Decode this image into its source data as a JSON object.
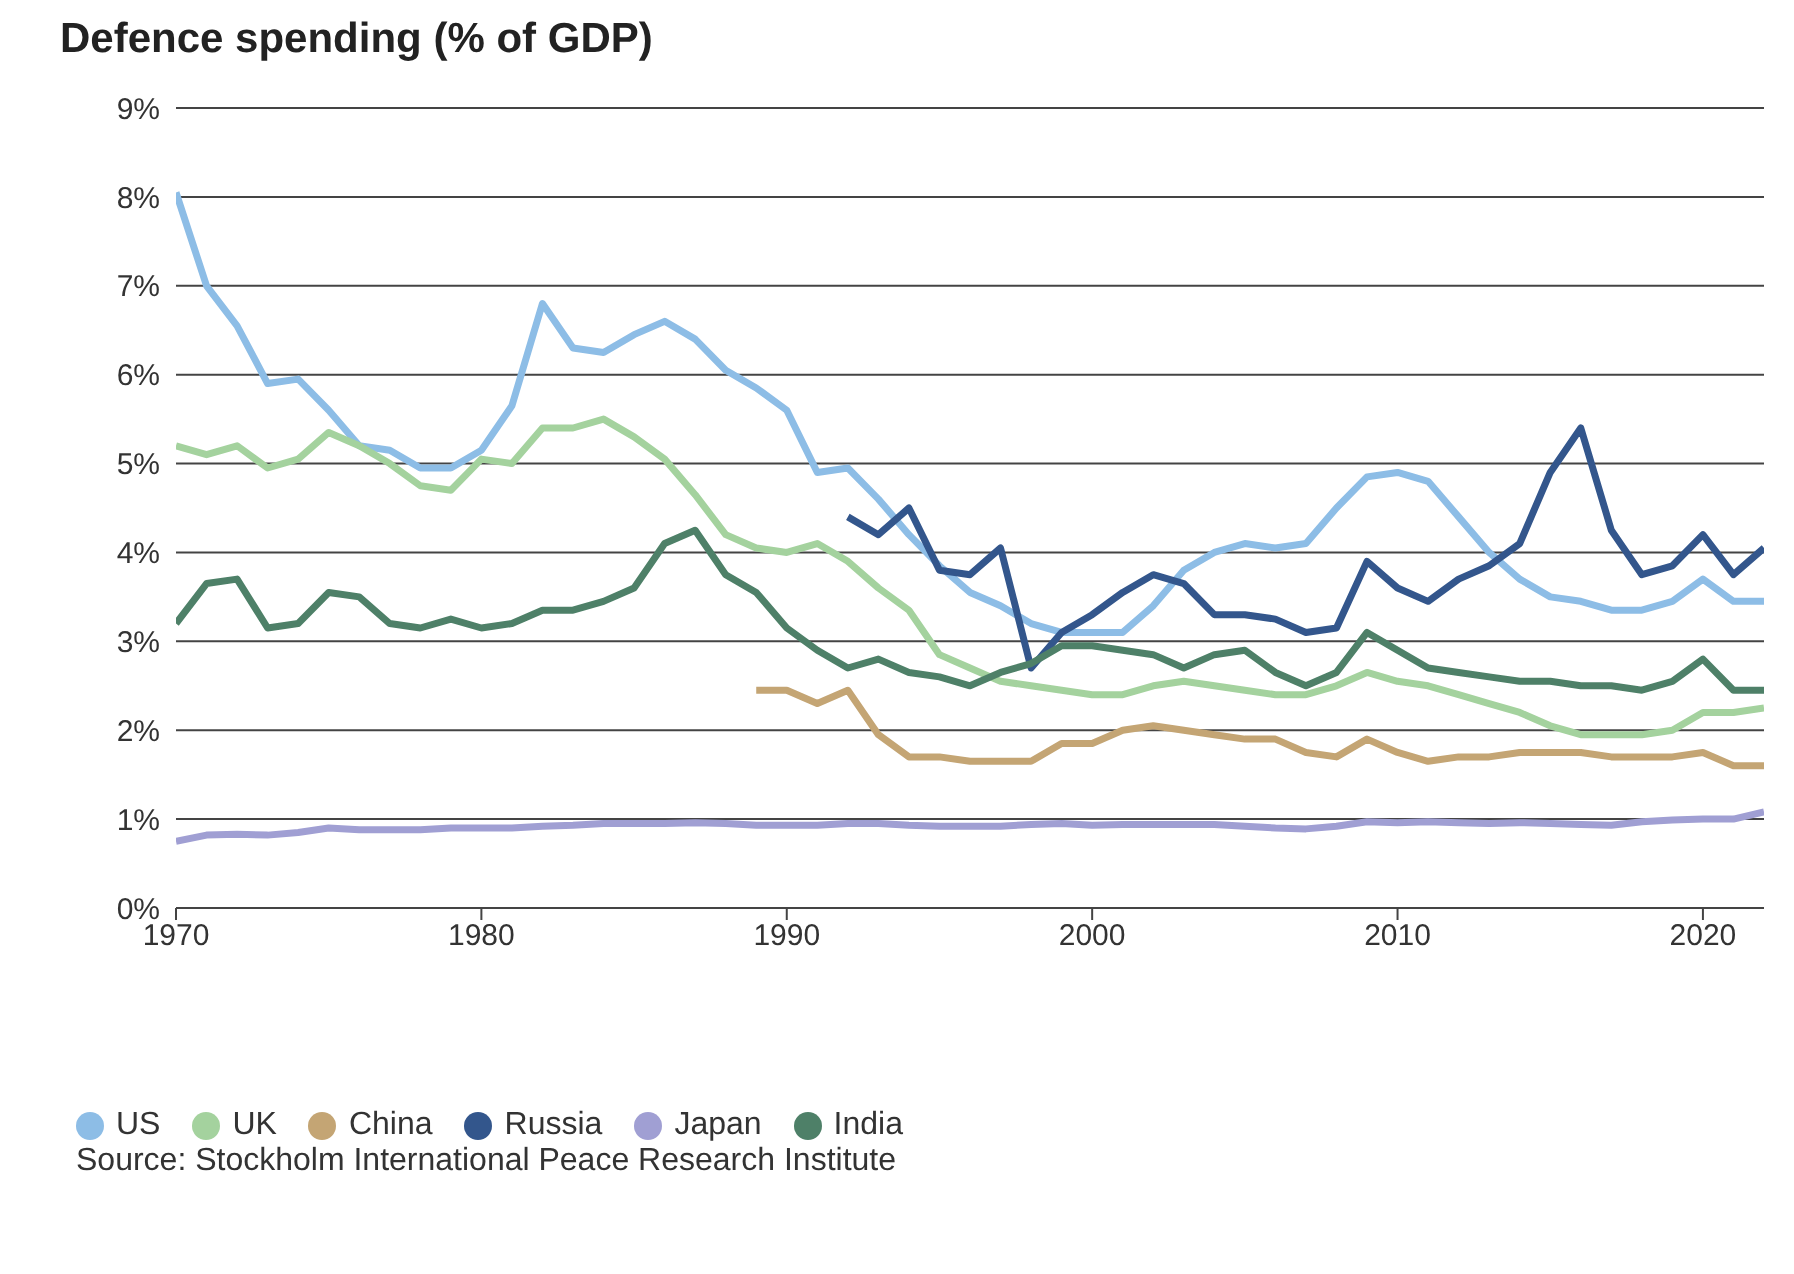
{
  "chart_data": {
    "type": "line",
    "title": "Defence spending (% of GDP)",
    "x": [
      1970,
      1971,
      1972,
      1973,
      1974,
      1975,
      1976,
      1977,
      1978,
      1979,
      1980,
      1981,
      1982,
      1983,
      1984,
      1985,
      1986,
      1987,
      1988,
      1989,
      1990,
      1991,
      1992,
      1993,
      1994,
      1995,
      1996,
      1997,
      1998,
      1999,
      2000,
      2001,
      2002,
      2003,
      2004,
      2005,
      2006,
      2007,
      2008,
      2009,
      2010,
      2011,
      2012,
      2013,
      2014,
      2015,
      2016,
      2017,
      2018,
      2019,
      2020,
      2021,
      2022
    ],
    "series": [
      {
        "name": "US",
        "color": "#8dbde6",
        "values": [
          8.05,
          7.0,
          6.55,
          5.9,
          5.95,
          5.6,
          5.2,
          5.15,
          4.95,
          4.95,
          5.15,
          5.65,
          6.8,
          6.3,
          6.25,
          6.45,
          6.6,
          6.4,
          6.05,
          5.85,
          5.6,
          4.9,
          4.95,
          4.6,
          4.2,
          3.85,
          3.55,
          3.4,
          3.2,
          3.1,
          3.1,
          3.1,
          3.4,
          3.8,
          4.0,
          4.1,
          4.05,
          4.1,
          4.5,
          4.85,
          4.9,
          4.8,
          4.4,
          4.0,
          3.7,
          3.5,
          3.45,
          3.35,
          3.35,
          3.45,
          3.7,
          3.45,
          3.45
        ]
      },
      {
        "name": "UK",
        "color": "#a4d29e",
        "values": [
          5.2,
          5.1,
          5.2,
          4.95,
          5.05,
          5.35,
          5.2,
          5.0,
          4.75,
          4.7,
          5.05,
          5.0,
          5.4,
          5.4,
          5.5,
          5.3,
          5.05,
          4.65,
          4.2,
          4.05,
          4.0,
          4.1,
          3.9,
          3.6,
          3.35,
          2.85,
          2.7,
          2.55,
          2.5,
          2.45,
          2.4,
          2.4,
          2.5,
          2.55,
          2.5,
          2.45,
          2.4,
          2.4,
          2.5,
          2.65,
          2.55,
          2.5,
          2.4,
          2.3,
          2.2,
          2.05,
          1.95,
          1.95,
          1.95,
          2.0,
          2.2,
          2.2,
          2.25
        ]
      },
      {
        "name": "China",
        "color": "#c4a574",
        "values": [
          null,
          null,
          null,
          null,
          null,
          null,
          null,
          null,
          null,
          null,
          null,
          null,
          null,
          null,
          null,
          null,
          null,
          null,
          null,
          2.45,
          2.45,
          2.3,
          2.45,
          1.95,
          1.7,
          1.7,
          1.65,
          1.65,
          1.65,
          1.85,
          1.85,
          2.0,
          2.05,
          2.0,
          1.95,
          1.9,
          1.9,
          1.75,
          1.7,
          1.9,
          1.75,
          1.65,
          1.7,
          1.7,
          1.75,
          1.75,
          1.75,
          1.7,
          1.7,
          1.7,
          1.75,
          1.6,
          1.6
        ]
      },
      {
        "name": "Russia",
        "color": "#33568c",
        "values": [
          null,
          null,
          null,
          null,
          null,
          null,
          null,
          null,
          null,
          null,
          null,
          null,
          null,
          null,
          null,
          null,
          null,
          null,
          null,
          null,
          null,
          null,
          4.4,
          4.2,
          4.5,
          3.8,
          3.75,
          4.05,
          2.7,
          3.1,
          3.3,
          3.55,
          3.75,
          3.65,
          3.3,
          3.3,
          3.25,
          3.1,
          3.15,
          3.9,
          3.6,
          3.45,
          3.7,
          3.85,
          4.1,
          4.9,
          5.4,
          4.25,
          3.75,
          3.85,
          4.2,
          3.75,
          4.05
        ]
      },
      {
        "name": "Japan",
        "color": "#a09fd3",
        "values": [
          0.75,
          0.82,
          0.83,
          0.82,
          0.85,
          0.9,
          0.88,
          0.88,
          0.88,
          0.9,
          0.9,
          0.9,
          0.92,
          0.93,
          0.95,
          0.95,
          0.95,
          0.96,
          0.95,
          0.93,
          0.93,
          0.93,
          0.95,
          0.95,
          0.93,
          0.92,
          0.92,
          0.92,
          0.94,
          0.95,
          0.93,
          0.94,
          0.94,
          0.94,
          0.94,
          0.92,
          0.9,
          0.89,
          0.92,
          0.97,
          0.96,
          0.97,
          0.96,
          0.95,
          0.96,
          0.95,
          0.94,
          0.93,
          0.97,
          0.99,
          1.0,
          1.0,
          1.08
        ]
      },
      {
        "name": "India",
        "color": "#4e8068",
        "values": [
          3.2,
          3.65,
          3.7,
          3.15,
          3.2,
          3.55,
          3.5,
          3.2,
          3.15,
          3.25,
          3.15,
          3.2,
          3.35,
          3.35,
          3.45,
          3.6,
          4.1,
          4.25,
          3.75,
          3.55,
          3.15,
          2.9,
          2.7,
          2.8,
          2.65,
          2.6,
          2.5,
          2.65,
          2.75,
          2.95,
          2.95,
          2.9,
          2.85,
          2.7,
          2.85,
          2.9,
          2.65,
          2.5,
          2.65,
          3.1,
          2.9,
          2.7,
          2.65,
          2.6,
          2.55,
          2.55,
          2.5,
          2.5,
          2.45,
          2.55,
          2.8,
          2.45,
          2.45
        ]
      }
    ],
    "xlim": [
      1970,
      2022
    ],
    "xticks": [
      1970,
      1980,
      1990,
      2000,
      2010,
      2020
    ],
    "ylim": [
      0,
      9
    ],
    "yticks": [
      {
        "value": 0,
        "label": "0%"
      },
      {
        "value": 1,
        "label": "1%"
      },
      {
        "value": 2,
        "label": "2%"
      },
      {
        "value": 3,
        "label": "3%"
      },
      {
        "value": 4,
        "label": "4%"
      },
      {
        "value": 5,
        "label": "5%"
      },
      {
        "value": 6,
        "label": "6%"
      },
      {
        "value": 7,
        "label": "7%"
      },
      {
        "value": 8,
        "label": "8%"
      },
      {
        "value": 9,
        "label": "9%"
      }
    ],
    "grid": "y",
    "legend": "bottom",
    "marker": "none",
    "line_style": "solid",
    "annotations": [
      "Source: Stockholm International Peace Research Institute"
    ]
  }
}
